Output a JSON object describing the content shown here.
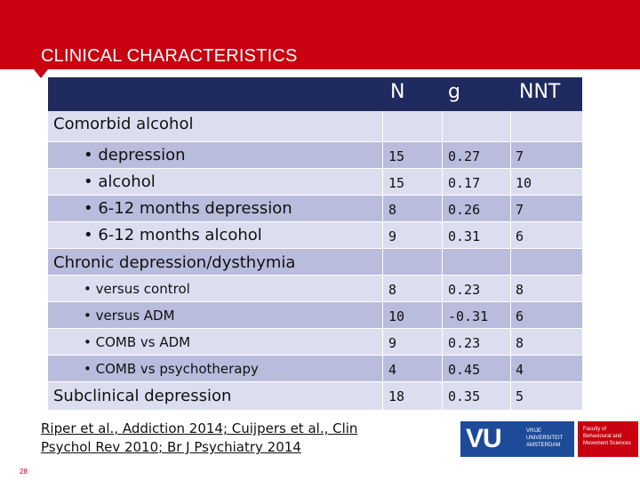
{
  "header": {
    "title": "CLINICAL CHARACTERISTICS",
    "accent_color": "#c8000f"
  },
  "table": {
    "columns": [
      "N",
      "g",
      "NNT"
    ],
    "sections": [
      {
        "title": "Comorbid alcohol",
        "rows": [
          {
            "label": "• depression",
            "N": "15",
            "g": "0.27",
            "NNT": "7"
          },
          {
            "label": "• alcohol",
            "N": "15",
            "g": "0.17",
            "NNT": "10"
          },
          {
            "label": "• 6-12 months depression",
            "N": "8",
            "g": "0.26",
            "NNT": "7"
          },
          {
            "label": "• 6-12 months alcohol",
            "N": "9",
            "g": "0.31",
            "NNT": "6"
          }
        ]
      },
      {
        "title": "Chronic depression/dysthymia",
        "rows": [
          {
            "label": "• versus control",
            "N": "8",
            "g": "0.23",
            "NNT": "8"
          },
          {
            "label": "• versus ADM",
            "N": "10",
            "g": "-0.31",
            "NNT": "6"
          },
          {
            "label": "• COMB vs ADM",
            "N": "9",
            "g": "0.23",
            "NNT": "8"
          },
          {
            "label": "• COMB vs psychotherapy",
            "N": "4",
            "g": "0.45",
            "NNT": "4"
          }
        ]
      },
      {
        "title": "Subclinical depression",
        "N": "18",
        "g": "0.35",
        "NNT": "5"
      }
    ]
  },
  "reference": {
    "line1": "Riper et al., Addiction 2014; Cuijpers et al., Clin",
    "line2": "Psychol Rev 2010; Br J Psychiatry 2014"
  },
  "logo": {
    "vu_letters": "VU",
    "vu_line1": "VRIJE",
    "vu_line2": "UNIVERSITEIT",
    "vu_line3": "AMSTERDAM",
    "faculty_line1": "Faculty of",
    "faculty_line2": "Behavioural and",
    "faculty_line3": "Movement Sciences"
  },
  "footer": {
    "page_number": "28"
  }
}
